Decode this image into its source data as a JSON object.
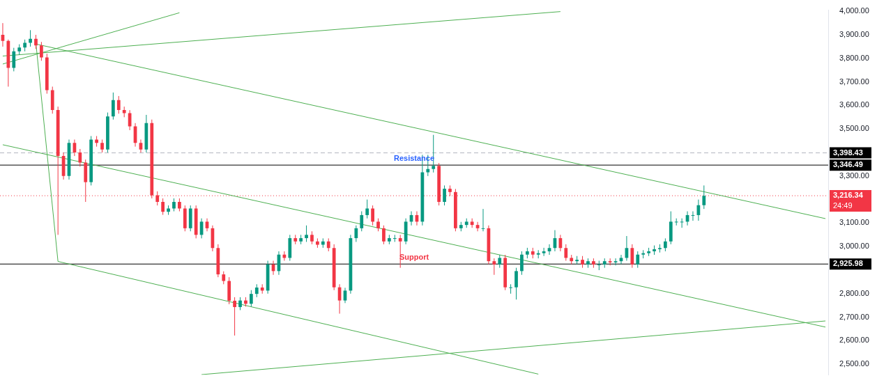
{
  "chart_data": {
    "type": "candlestick",
    "categories": [
      null,
      null,
      null,
      null,
      null,
      null,
      null,
      null,
      null,
      null,
      null,
      null,
      null,
      null,
      null,
      null,
      null,
      null,
      null,
      null,
      null,
      null,
      null,
      null,
      null,
      null,
      null,
      null,
      null,
      null,
      null,
      null,
      null,
      null,
      null,
      null,
      null,
      null,
      null,
      null,
      null,
      null,
      null,
      null,
      null,
      null,
      null,
      null,
      null,
      null,
      null,
      null,
      null,
      null,
      null,
      null,
      null,
      null,
      null,
      null,
      null,
      null,
      null,
      null,
      null,
      null,
      null,
      null,
      null,
      null,
      null,
      null,
      null,
      null,
      null,
      null,
      null,
      null,
      null,
      null,
      null,
      null,
      null,
      null,
      null,
      null,
      null,
      null,
      null,
      null,
      null,
      null,
      null,
      null,
      null,
      null,
      null,
      null,
      null,
      null,
      null,
      null,
      null,
      null,
      null,
      null,
      null,
      null,
      null,
      null,
      null,
      null,
      null,
      null,
      null,
      null,
      null,
      null,
      null,
      null,
      null,
      null,
      null,
      null,
      null,
      null,
      null,
      null,
      null,
      null,
      null,
      null,
      null,
      null,
      null,
      null,
      null,
      null,
      null,
      null,
      null,
      null,
      null,
      null,
      null,
      null,
      null,
      null,
      null,
      null
    ],
    "ohlc": [
      [
        3900,
        3950,
        3850,
        3874
      ],
      [
        3874,
        3880,
        3680,
        3760
      ],
      [
        3760,
        3845,
        3745,
        3830
      ],
      [
        3830,
        3860,
        3815,
        3846
      ],
      [
        3846,
        3880,
        3830,
        3866
      ],
      [
        3866,
        3920,
        3850,
        3883
      ],
      [
        3883,
        3900,
        3840,
        3855
      ],
      [
        3855,
        3870,
        3790,
        3804
      ],
      [
        3804,
        3820,
        3650,
        3665
      ],
      [
        3665,
        3680,
        3565,
        3581
      ],
      [
        3581,
        3595,
        3050,
        3385
      ],
      [
        3385,
        3400,
        3285,
        3300
      ],
      [
        3300,
        3455,
        3285,
        3441
      ],
      [
        3441,
        3455,
        3385,
        3400
      ],
      [
        3400,
        3415,
        3340,
        3357
      ],
      [
        3357,
        3370,
        3190,
        3274
      ],
      [
        3274,
        3470,
        3260,
        3455
      ],
      [
        3455,
        3470,
        3425,
        3441
      ],
      [
        3441,
        3455,
        3400,
        3413
      ],
      [
        3413,
        3570,
        3400,
        3553
      ],
      [
        3553,
        3655,
        3540,
        3623
      ],
      [
        3623,
        3640,
        3565,
        3581
      ],
      [
        3581,
        3595,
        3550,
        3567
      ],
      [
        3567,
        3580,
        3495,
        3511
      ],
      [
        3511,
        3525,
        3425,
        3441
      ],
      [
        3441,
        3455,
        3400,
        3413
      ],
      [
        3413,
        3560,
        3400,
        3525
      ],
      [
        3525,
        3540,
        3205,
        3218
      ],
      [
        3218,
        3235,
        3175,
        3190
      ],
      [
        3190,
        3205,
        3135,
        3148
      ],
      [
        3148,
        3175,
        3135,
        3162
      ],
      [
        3162,
        3205,
        3150,
        3190
      ],
      [
        3190,
        3205,
        3150,
        3162
      ],
      [
        3162,
        3175,
        3065,
        3078
      ],
      [
        3078,
        3175,
        3065,
        3162
      ],
      [
        3162,
        3175,
        3035,
        3050
      ],
      [
        3050,
        3120,
        3035,
        3106
      ],
      [
        3106,
        3120,
        3065,
        3078
      ],
      [
        3078,
        3090,
        2980,
        2994
      ],
      [
        2994,
        3010,
        2870,
        2882
      ],
      [
        2882,
        2895,
        2840,
        2854
      ],
      [
        2854,
        2870,
        2755,
        2770
      ],
      [
        2770,
        2785,
        2622,
        2743
      ],
      [
        2743,
        2785,
        2730,
        2771
      ],
      [
        2771,
        2785,
        2745,
        2757
      ],
      [
        2757,
        2815,
        2745,
        2799
      ],
      [
        2799,
        2840,
        2785,
        2826
      ],
      [
        2826,
        2840,
        2800,
        2813
      ],
      [
        2813,
        2940,
        2800,
        2924
      ],
      [
        2924,
        2940,
        2880,
        2896
      ],
      [
        2896,
        2980,
        2880,
        2966
      ],
      [
        2966,
        2980,
        2940,
        2952
      ],
      [
        2952,
        3050,
        2940,
        3036
      ],
      [
        3036,
        3050,
        3010,
        3022
      ],
      [
        3022,
        3050,
        3010,
        3036
      ],
      [
        3036,
        3090,
        3020,
        3050
      ],
      [
        3050,
        3065,
        3010,
        3022
      ],
      [
        3022,
        3035,
        2995,
        3008
      ],
      [
        3008,
        3035,
        2995,
        3022
      ],
      [
        3022,
        3035,
        2980,
        2994
      ],
      [
        2994,
        3010,
        2815,
        2827
      ],
      [
        2827,
        2840,
        2715,
        2771
      ],
      [
        2771,
        2825,
        2760,
        2813
      ],
      [
        2813,
        3050,
        2800,
        3036
      ],
      [
        3036,
        3090,
        3020,
        3078
      ],
      [
        3078,
        3150,
        3065,
        3134
      ],
      [
        3134,
        3200,
        3120,
        3162
      ],
      [
        3162,
        3175,
        3090,
        3106
      ],
      [
        3106,
        3120,
        3065,
        3078
      ],
      [
        3078,
        3090,
        3010,
        3022
      ],
      [
        3022,
        3050,
        3010,
        3036
      ],
      [
        3036,
        3050,
        3020,
        3036
      ],
      [
        3036,
        3050,
        2910,
        3022
      ],
      [
        3022,
        3120,
        3010,
        3106
      ],
      [
        3106,
        3150,
        3090,
        3134
      ],
      [
        3134,
        3150,
        3090,
        3106
      ],
      [
        3106,
        3390,
        3090,
        3316
      ],
      [
        3316,
        3390,
        3300,
        3330
      ],
      [
        3330,
        3475,
        3315,
        3343
      ],
      [
        3343,
        3355,
        3175,
        3190
      ],
      [
        3190,
        3260,
        3175,
        3246
      ],
      [
        3246,
        3260,
        3215,
        3232
      ],
      [
        3232,
        3245,
        3065,
        3078
      ],
      [
        3078,
        3105,
        3065,
        3092
      ],
      [
        3092,
        3120,
        3080,
        3106
      ],
      [
        3106,
        3120,
        3080,
        3092
      ],
      [
        3092,
        3105,
        3065,
        3078
      ],
      [
        3078,
        3160,
        3065,
        3078
      ],
      [
        3078,
        3090,
        2925,
        2938
      ],
      [
        2938,
        2950,
        2880,
        2924
      ],
      [
        2924,
        2965,
        2910,
        2952
      ],
      [
        2952,
        2965,
        2815,
        2827
      ],
      [
        2827,
        2840,
        2800,
        2827
      ],
      [
        2827,
        2910,
        2775,
        2896
      ],
      [
        2896,
        2980,
        2880,
        2966
      ],
      [
        2966,
        2995,
        2950,
        2980
      ],
      [
        2980,
        2995,
        2950,
        2966
      ],
      [
        2966,
        2985,
        2950,
        2972
      ],
      [
        2972,
        2995,
        2960,
        2980
      ],
      [
        2980,
        3010,
        2965,
        2994
      ],
      [
        2994,
        3070,
        2980,
        3036
      ],
      [
        3036,
        3050,
        2980,
        2994
      ],
      [
        2994,
        3010,
        2940,
        2952
      ],
      [
        2952,
        2965,
        2925,
        2938
      ],
      [
        2938,
        2960,
        2925,
        2944
      ],
      [
        2944,
        2960,
        2910,
        2924
      ],
      [
        2924,
        2950,
        2910,
        2938
      ],
      [
        2938,
        2950,
        2910,
        2924
      ],
      [
        2924,
        2940,
        2900,
        2924
      ],
      [
        2924,
        2950,
        2910,
        2938
      ],
      [
        2938,
        2950,
        2920,
        2933
      ],
      [
        2933,
        2950,
        2920,
        2938
      ],
      [
        2938,
        2965,
        2925,
        2952
      ],
      [
        2952,
        3045,
        2940,
        2994
      ],
      [
        2994,
        3010,
        2910,
        2924
      ],
      [
        2924,
        2980,
        2910,
        2966
      ],
      [
        2966,
        2985,
        2950,
        2972
      ],
      [
        2972,
        2995,
        2960,
        2980
      ],
      [
        2980,
        3005,
        2965,
        2989
      ],
      [
        2989,
        3010,
        2975,
        2994
      ],
      [
        2994,
        3035,
        2980,
        3022
      ],
      [
        3022,
        3150,
        3010,
        3106
      ],
      [
        3106,
        3120,
        3090,
        3106
      ],
      [
        3106,
        3120,
        3080,
        3106
      ],
      [
        3106,
        3150,
        3090,
        3134
      ],
      [
        3134,
        3150,
        3110,
        3134
      ],
      [
        3134,
        3200,
        3110,
        3176
      ],
      [
        3176,
        3260,
        3160,
        3216
      ],
      null,
      null,
      null,
      null,
      null,
      null,
      null,
      null,
      null,
      null,
      null,
      null,
      null,
      null,
      null,
      null,
      null,
      null,
      null,
      null,
      null,
      null
    ],
    "series": [
      {
        "type": "line",
        "color": "#4caf50",
        "values": [
          3776,
          null,
          null,
          null,
          null,
          null,
          null,
          null,
          null,
          null,
          null,
          null,
          null,
          null,
          null,
          null,
          null,
          null,
          null,
          null,
          null,
          null,
          null,
          null,
          null,
          null,
          null,
          null,
          null,
          null,
          null,
          null,
          3994,
          null,
          null,
          null,
          null,
          null,
          null,
          null,
          null,
          null,
          null,
          null,
          null,
          null,
          null,
          null,
          null,
          null,
          null,
          null,
          null,
          null,
          null,
          null,
          null,
          null,
          null,
          null,
          null,
          null,
          null,
          null,
          null,
          null,
          null,
          null,
          null,
          null,
          null,
          null,
          null,
          null,
          null,
          null,
          null,
          null,
          null,
          null,
          null,
          null,
          null,
          null,
          null,
          null,
          null,
          null,
          null,
          null,
          null,
          null,
          null,
          null,
          null,
          null,
          null,
          null,
          null,
          null,
          null,
          null,
          null,
          null,
          null,
          null,
          null,
          null,
          null,
          null,
          null,
          null,
          null,
          null,
          null,
          null,
          null,
          null,
          null,
          null,
          null,
          null,
          null,
          null,
          null,
          null,
          null,
          null,
          null,
          null,
          null,
          null,
          null,
          null,
          null,
          null,
          null,
          null,
          null,
          null,
          null,
          null,
          null,
          null,
          null,
          null,
          null,
          null,
          null,
          null
        ]
      },
      {
        "type": "line",
        "color": "#4caf50",
        "values": [
          3810,
          null,
          null,
          null,
          null,
          null,
          null,
          null,
          null,
          null,
          null,
          null,
          null,
          null,
          null,
          null,
          null,
          null,
          null,
          null,
          null,
          null,
          null,
          null,
          null,
          null,
          null,
          null,
          null,
          null,
          null,
          null,
          null,
          null,
          null,
          null,
          null,
          null,
          null,
          null,
          null,
          null,
          null,
          null,
          null,
          null,
          null,
          null,
          null,
          null,
          null,
          null,
          null,
          null,
          null,
          null,
          null,
          null,
          null,
          null,
          null,
          null,
          null,
          null,
          null,
          null,
          null,
          null,
          null,
          null,
          null,
          null,
          null,
          null,
          null,
          null,
          null,
          null,
          null,
          null,
          null,
          null,
          null,
          null,
          null,
          null,
          null,
          null,
          null,
          null,
          null,
          null,
          null,
          null,
          null,
          null,
          null,
          null,
          null,
          null,
          null,
          3999,
          null,
          null,
          null,
          null,
          null,
          null,
          null,
          null,
          null,
          null,
          null,
          null,
          null,
          null,
          null,
          null,
          null,
          null,
          null,
          null,
          null,
          null,
          null,
          null,
          null,
          null,
          null,
          null,
          null,
          null,
          null,
          null,
          null,
          null,
          null,
          null,
          null,
          null,
          null,
          null,
          null,
          null,
          null,
          null,
          null,
          null,
          null,
          null
        ]
      },
      {
        "type": "line",
        "color": "#4caf50",
        "values": [
          null,
          null,
          null,
          null,
          null,
          null,
          3861,
          null,
          null,
          null,
          null,
          null,
          null,
          null,
          null,
          null,
          null,
          null,
          null,
          null,
          null,
          null,
          null,
          null,
          null,
          null,
          null,
          null,
          null,
          null,
          null,
          null,
          null,
          null,
          null,
          null,
          null,
          null,
          null,
          null,
          null,
          null,
          null,
          null,
          null,
          null,
          null,
          null,
          null,
          null,
          null,
          null,
          null,
          null,
          null,
          null,
          null,
          null,
          null,
          null,
          null,
          null,
          null,
          null,
          null,
          null,
          null,
          null,
          null,
          null,
          null,
          null,
          null,
          null,
          null,
          null,
          null,
          null,
          null,
          null,
          null,
          null,
          null,
          null,
          null,
          null,
          null,
          null,
          null,
          null,
          null,
          null,
          null,
          null,
          null,
          null,
          null,
          null,
          null,
          null,
          null,
          null,
          null,
          null,
          null,
          null,
          null,
          null,
          null,
          null,
          null,
          null,
          null,
          null,
          null,
          null,
          null,
          null,
          null,
          null,
          null,
          null,
          null,
          null,
          null,
          null,
          null,
          null,
          null,
          null,
          null,
          null,
          null,
          null,
          null,
          null,
          null,
          null,
          null,
          null,
          null,
          null,
          null,
          null,
          null,
          null,
          null,
          null,
          null,
          3119
        ]
      },
      {
        "type": "line",
        "color": "#4caf50",
        "values": [
          3433,
          null,
          null,
          null,
          null,
          null,
          null,
          null,
          null,
          null,
          null,
          null,
          null,
          null,
          null,
          null,
          null,
          null,
          null,
          null,
          null,
          null,
          null,
          null,
          null,
          null,
          null,
          null,
          null,
          null,
          null,
          null,
          null,
          null,
          null,
          null,
          null,
          null,
          null,
          null,
          null,
          null,
          null,
          null,
          null,
          null,
          null,
          null,
          null,
          null,
          null,
          null,
          null,
          null,
          null,
          null,
          null,
          null,
          null,
          null,
          null,
          null,
          null,
          null,
          null,
          null,
          null,
          null,
          null,
          null,
          null,
          null,
          null,
          null,
          null,
          null,
          null,
          null,
          null,
          null,
          null,
          null,
          null,
          null,
          null,
          null,
          null,
          null,
          null,
          null,
          null,
          null,
          null,
          null,
          null,
          null,
          null,
          null,
          null,
          null,
          null,
          null,
          null,
          null,
          null,
          null,
          null,
          null,
          null,
          null,
          null,
          null,
          null,
          null,
          null,
          null,
          null,
          null,
          null,
          null,
          null,
          null,
          null,
          null,
          null,
          null,
          null,
          null,
          null,
          null,
          null,
          null,
          null,
          null,
          null,
          null,
          null,
          null,
          null,
          null,
          null,
          null,
          null,
          null,
          null,
          null,
          null,
          null,
          null,
          2658
        ]
      },
      {
        "type": "line",
        "color": "#4caf50",
        "values": [
          null,
          null,
          null,
          null,
          null,
          null,
          null,
          null,
          null,
          null,
          2937,
          null,
          null,
          null,
          null,
          null,
          null,
          null,
          null,
          null,
          null,
          null,
          null,
          null,
          null,
          null,
          null,
          null,
          null,
          null,
          null,
          null,
          null,
          null,
          null,
          null,
          null,
          null,
          null,
          null,
          null,
          null,
          null,
          null,
          null,
          null,
          null,
          null,
          null,
          null,
          null,
          null,
          null,
          null,
          null,
          null,
          null,
          null,
          null,
          null,
          null,
          null,
          null,
          null,
          null,
          null,
          null,
          null,
          null,
          null,
          null,
          null,
          null,
          null,
          null,
          null,
          null,
          null,
          null,
          null,
          null,
          null,
          null,
          null,
          null,
          null,
          null,
          null,
          null,
          null,
          null,
          null,
          null,
          null,
          null,
          null,
          null,
          2458,
          null,
          null,
          null,
          null,
          null,
          null,
          null,
          null,
          null,
          null,
          null,
          null,
          null,
          null,
          null,
          null,
          null,
          null,
          null,
          null,
          null,
          null,
          null,
          null,
          null,
          null,
          null,
          null,
          null,
          null,
          null,
          null,
          null,
          null,
          null,
          null,
          null,
          null,
          null,
          null,
          null,
          null,
          null,
          null,
          null,
          null,
          null,
          null,
          null,
          null,
          null,
          null
        ]
      },
      {
        "type": "line",
        "color": "#4caf50",
        "values": [
          null,
          null,
          null,
          null,
          null,
          null,
          3866,
          null,
          null,
          null,
          2937,
          null,
          null,
          null,
          null,
          null,
          null,
          null,
          null,
          null,
          null,
          null,
          null,
          null,
          null,
          null,
          null,
          null,
          null,
          null,
          null,
          null,
          null,
          null,
          null,
          null,
          null,
          null,
          null,
          null,
          null,
          null,
          null,
          null,
          null,
          null,
          null,
          null,
          null,
          null,
          null,
          null,
          null,
          null,
          null,
          null,
          null,
          null,
          null,
          null,
          null,
          null,
          null,
          null,
          null,
          null,
          null,
          null,
          null,
          null,
          null,
          null,
          null,
          null,
          null,
          null,
          null,
          null,
          null,
          null,
          null,
          null,
          null,
          null,
          null,
          null,
          null,
          null,
          null,
          null,
          null,
          null,
          null,
          null,
          null,
          null,
          null,
          null,
          null,
          null,
          null,
          null,
          null,
          null,
          null,
          null,
          null,
          null,
          null,
          null,
          null,
          null,
          null,
          null,
          null,
          null,
          null,
          null,
          null,
          null,
          null,
          null,
          null,
          null,
          null,
          null,
          null,
          null,
          null,
          null,
          null,
          null,
          null,
          null,
          null,
          null,
          null,
          null,
          null,
          null,
          null,
          null,
          null,
          null,
          null,
          null,
          null,
          null,
          null,
          null
        ]
      },
      {
        "type": "line",
        "color": "#4caf50",
        "values": [
          null,
          null,
          null,
          null,
          null,
          null,
          null,
          null,
          null,
          null,
          null,
          null,
          null,
          null,
          null,
          null,
          null,
          null,
          null,
          null,
          null,
          null,
          null,
          null,
          null,
          null,
          null,
          null,
          null,
          null,
          null,
          null,
          null,
          null,
          null,
          null,
          2456,
          null,
          null,
          null,
          null,
          null,
          null,
          null,
          null,
          null,
          null,
          null,
          null,
          null,
          null,
          null,
          null,
          null,
          null,
          null,
          null,
          null,
          null,
          null,
          null,
          null,
          null,
          null,
          null,
          null,
          null,
          null,
          null,
          null,
          null,
          null,
          null,
          null,
          null,
          null,
          null,
          null,
          null,
          null,
          null,
          null,
          null,
          null,
          null,
          null,
          null,
          null,
          null,
          null,
          null,
          null,
          null,
          null,
          null,
          null,
          null,
          null,
          null,
          null,
          null,
          null,
          null,
          null,
          null,
          null,
          null,
          null,
          null,
          null,
          null,
          null,
          null,
          null,
          null,
          null,
          null,
          null,
          null,
          null,
          null,
          null,
          null,
          null,
          null,
          null,
          null,
          null,
          null,
          null,
          null,
          null,
          null,
          null,
          null,
          null,
          null,
          null,
          null,
          null,
          null,
          null,
          null,
          null,
          null,
          null,
          null,
          null,
          null,
          2684
        ]
      }
    ],
    "ylim": [
      2455,
      4005
    ],
    "yticks": [
      {
        "value": 2500,
        "label": "2,500.00"
      },
      {
        "value": 2600,
        "label": "2,600.00"
      },
      {
        "value": 2700,
        "label": "2,700.00"
      },
      {
        "value": 2800,
        "label": "2,800.00"
      },
      {
        "value": 3000,
        "label": "3,000.00"
      },
      {
        "value": 3100,
        "label": "3,100.00"
      },
      {
        "value": 3300,
        "label": "3,300.00"
      },
      {
        "value": 3500,
        "label": "3,500.00"
      },
      {
        "value": 3600,
        "label": "3,600.00"
      },
      {
        "value": 3700,
        "label": "3,700.00"
      },
      {
        "value": 3800,
        "label": "3,800.00"
      },
      {
        "value": 3900,
        "label": "3,900.00"
      },
      {
        "value": 4000,
        "label": "4,000.00"
      }
    ],
    "tick_labels": "y",
    "ref_lines": [
      {
        "axis": "y",
        "value": 3398.43,
        "label": "3,398.43",
        "color": "#b2b5be",
        "line_style": "dashed"
      },
      {
        "axis": "y",
        "value": 3346.49,
        "label": "3,346.49",
        "color": "#000000",
        "line_style": "solid"
      },
      {
        "axis": "y",
        "value": 2925.98,
        "label": "2,925.98",
        "color": "#000000",
        "line_style": "solid"
      },
      {
        "axis": "y",
        "value": 3216.34,
        "label": "3,216.34\n24:49",
        "color": "#f23645",
        "line_style": "dotted"
      }
    ],
    "annotations": [
      "Resistance",
      "Support"
    ]
  }
}
